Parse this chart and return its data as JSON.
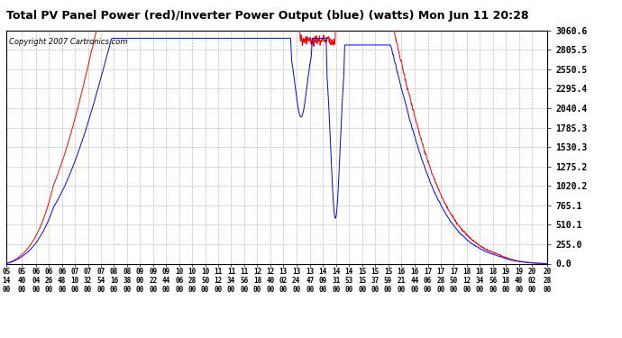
{
  "title": "Total PV Panel Power (red)/Inverter Power Output (blue) (watts) Mon Jun 11 20:28",
  "copyright_text": "Copyright 2007 Cartronics.com",
  "ymax": 3060.6,
  "ymin": 0.0,
  "yticks": [
    0.0,
    255.0,
    510.1,
    765.1,
    1020.2,
    1275.2,
    1530.3,
    1785.3,
    2040.4,
    2295.4,
    2550.5,
    2805.5,
    3060.6
  ],
  "ytick_labels": [
    "0.0",
    "255.0",
    "510.1",
    "765.1",
    "1020.2",
    "1275.2",
    "1530.3",
    "1785.3",
    "2040.4",
    "2295.4",
    "2550.5",
    "2805.5",
    "3060.6"
  ],
  "bg_color": "#ffffff",
  "grid_color": "#aaaaaa",
  "line_red": "#ff0000",
  "line_blue": "#0000ff",
  "title_fontsize": 9,
  "copyright_fontsize": 6,
  "x_tick_times": [
    "05:14",
    "05:40",
    "06:04",
    "06:26",
    "06:48",
    "07:10",
    "07:32",
    "07:54",
    "08:16",
    "08:38",
    "09:00",
    "09:22",
    "09:44",
    "10:06",
    "10:28",
    "10:50",
    "11:12",
    "11:34",
    "11:56",
    "12:18",
    "12:40",
    "13:02",
    "13:24",
    "13:47",
    "14:09",
    "14:31",
    "14:53",
    "15:15",
    "15:37",
    "15:59",
    "16:21",
    "16:44",
    "17:06",
    "17:28",
    "17:50",
    "18:12",
    "18:34",
    "18:56",
    "19:18",
    "19:40",
    "20:02",
    "20:28"
  ]
}
